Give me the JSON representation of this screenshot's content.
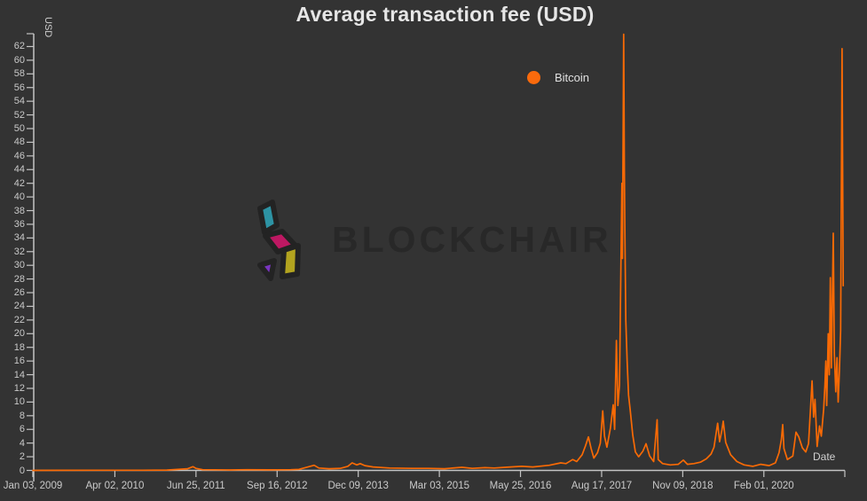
{
  "header": {
    "title": "Average transaction fee (USD)"
  },
  "legend": {
    "items": [
      {
        "label": "Bitcoin",
        "color": "#fa6a0c"
      }
    ]
  },
  "watermark": {
    "text": "BLOCKCHAIR"
  },
  "colors": {
    "background": "#333333",
    "line": "#f96a05",
    "axis": "#c4c4c4",
    "tick_text": "#c9c9c9",
    "title_text": "#e6e6e6",
    "watermark_text": "#282828",
    "logo_teal": "#2d93a4",
    "logo_magenta": "#bd1862",
    "logo_purple": "#7a35c1",
    "logo_yellow": "#b3a41f"
  },
  "axes": {
    "y": {
      "title": "USD",
      "tick_labels": [
        "0",
        "2",
        "4",
        "6",
        "8",
        "10",
        "12",
        "14",
        "16",
        "18",
        "20",
        "22",
        "24",
        "26",
        "28",
        "30",
        "32",
        "34",
        "36",
        "38",
        "40",
        "42",
        "44",
        "46",
        "48",
        "50",
        "52",
        "54",
        "56",
        "58",
        "60",
        "62"
      ]
    },
    "x": {
      "title": "Date",
      "ticks": [
        {
          "label": "Jan 03, 2009",
          "date": "2009-01-03"
        },
        {
          "label": "Apr 02, 2010",
          "date": "2010-04-02"
        },
        {
          "label": "Jun 25, 2011",
          "date": "2011-06-25"
        },
        {
          "label": "Sep 16, 2012",
          "date": "2012-09-16"
        },
        {
          "label": "Dec 09, 2013",
          "date": "2013-12-09"
        },
        {
          "label": "Mar 03, 2015",
          "date": "2015-03-03"
        },
        {
          "label": "May 25, 2016",
          "date": "2016-05-25"
        },
        {
          "label": "Aug 17, 2017",
          "date": "2017-08-17"
        },
        {
          "label": "Nov 09, 2018",
          "date": "2018-11-09"
        },
        {
          "label": "Feb 01, 2020",
          "date": "2020-02-01"
        }
      ],
      "end_date": "2021-04-24"
    }
  },
  "chart_data": {
    "type": "line",
    "title": "Average transaction fee (USD)",
    "xlabel": "Date",
    "ylabel": "USD",
    "ylim": [
      0,
      64
    ],
    "x_range": [
      "2009-01-03",
      "2021-04-24"
    ],
    "grid": false,
    "legend_position": "top-center",
    "series": [
      {
        "name": "Bitcoin",
        "color": "#f96a05",
        "points": [
          [
            "2009-01-03",
            0.0
          ],
          [
            "2009-06-01",
            0.01
          ],
          [
            "2010-01-01",
            0.02
          ],
          [
            "2010-09-01",
            0.02
          ],
          [
            "2011-01-15",
            0.05
          ],
          [
            "2011-05-10",
            0.25
          ],
          [
            "2011-06-08",
            0.55
          ],
          [
            "2011-06-25",
            0.3
          ],
          [
            "2011-08-01",
            0.1
          ],
          [
            "2012-01-01",
            0.06
          ],
          [
            "2012-04-01",
            0.1
          ],
          [
            "2012-08-01",
            0.08
          ],
          [
            "2012-12-01",
            0.1
          ],
          [
            "2013-01-15",
            0.15
          ],
          [
            "2013-04-09",
            0.75
          ],
          [
            "2013-05-05",
            0.35
          ],
          [
            "2013-07-01",
            0.25
          ],
          [
            "2013-09-01",
            0.3
          ],
          [
            "2013-10-12",
            0.6
          ],
          [
            "2013-11-05",
            1.1
          ],
          [
            "2013-12-01",
            0.8
          ],
          [
            "2013-12-20",
            1.0
          ],
          [
            "2014-01-15",
            0.7
          ],
          [
            "2014-03-01",
            0.5
          ],
          [
            "2014-06-01",
            0.35
          ],
          [
            "2014-10-01",
            0.3
          ],
          [
            "2015-01-01",
            0.3
          ],
          [
            "2015-04-01",
            0.25
          ],
          [
            "2015-07-06",
            0.45
          ],
          [
            "2015-09-01",
            0.3
          ],
          [
            "2015-11-10",
            0.4
          ],
          [
            "2016-01-01",
            0.35
          ],
          [
            "2016-03-01",
            0.45
          ],
          [
            "2016-06-01",
            0.6
          ],
          [
            "2016-08-01",
            0.5
          ],
          [
            "2016-11-01",
            0.75
          ],
          [
            "2017-01-03",
            1.1
          ],
          [
            "2017-02-01",
            1.0
          ],
          [
            "2017-03-10",
            1.6
          ],
          [
            "2017-04-01",
            1.3
          ],
          [
            "2017-05-01",
            2.3
          ],
          [
            "2017-05-20",
            3.6
          ],
          [
            "2017-06-05",
            4.9
          ],
          [
            "2017-06-20",
            3.2
          ],
          [
            "2017-07-05",
            1.8
          ],
          [
            "2017-07-25",
            2.6
          ],
          [
            "2017-08-10",
            4.0
          ],
          [
            "2017-08-23",
            8.7
          ],
          [
            "2017-09-02",
            5.0
          ],
          [
            "2017-09-15",
            3.4
          ],
          [
            "2017-10-05",
            6.2
          ],
          [
            "2017-10-20",
            9.6
          ],
          [
            "2017-10-28",
            6.0
          ],
          [
            "2017-11-07",
            19.0
          ],
          [
            "2017-11-15",
            9.5
          ],
          [
            "2017-11-24",
            12.5
          ],
          [
            "2017-12-01",
            28.0
          ],
          [
            "2017-12-07",
            42.0
          ],
          [
            "2017-12-10",
            31.0
          ],
          [
            "2017-12-17",
            63.8
          ],
          [
            "2017-12-21",
            44.0
          ],
          [
            "2017-12-24",
            34.5
          ],
          [
            "2017-12-29",
            22.0
          ],
          [
            "2018-01-05",
            16.0
          ],
          [
            "2018-01-13",
            11.0
          ],
          [
            "2018-01-22",
            8.9
          ],
          [
            "2018-02-05",
            5.2
          ],
          [
            "2018-02-20",
            2.7
          ],
          [
            "2018-03-10",
            2.0
          ],
          [
            "2018-04-02",
            2.8
          ],
          [
            "2018-04-20",
            3.9
          ],
          [
            "2018-05-10",
            2.1
          ],
          [
            "2018-06-01",
            1.3
          ],
          [
            "2018-06-20",
            7.4
          ],
          [
            "2018-06-26",
            1.6
          ],
          [
            "2018-07-20",
            1.0
          ],
          [
            "2018-09-01",
            0.8
          ],
          [
            "2018-10-15",
            0.9
          ],
          [
            "2018-11-12",
            1.5
          ],
          [
            "2018-12-05",
            0.9
          ],
          [
            "2019-01-10",
            1.0
          ],
          [
            "2019-02-15",
            1.2
          ],
          [
            "2019-03-20",
            1.7
          ],
          [
            "2019-04-15",
            2.4
          ],
          [
            "2019-05-01",
            3.4
          ],
          [
            "2019-05-21",
            6.9
          ],
          [
            "2019-06-01",
            4.2
          ],
          [
            "2019-06-14",
            5.9
          ],
          [
            "2019-06-21",
            7.2
          ],
          [
            "2019-07-05",
            4.1
          ],
          [
            "2019-08-01",
            2.3
          ],
          [
            "2019-09-05",
            1.3
          ],
          [
            "2019-10-15",
            0.8
          ],
          [
            "2019-12-01",
            0.6
          ],
          [
            "2020-01-15",
            0.9
          ],
          [
            "2020-03-01",
            0.7
          ],
          [
            "2020-04-05",
            1.1
          ],
          [
            "2020-04-25",
            2.6
          ],
          [
            "2020-05-08",
            4.5
          ],
          [
            "2020-05-15",
            6.7
          ],
          [
            "2020-05-22",
            3.2
          ],
          [
            "2020-06-10",
            1.6
          ],
          [
            "2020-07-10",
            2.1
          ],
          [
            "2020-07-28",
            5.6
          ],
          [
            "2020-08-12",
            4.9
          ],
          [
            "2020-09-01",
            3.3
          ],
          [
            "2020-09-20",
            2.7
          ],
          [
            "2020-10-05",
            3.9
          ],
          [
            "2020-10-25",
            13.1
          ],
          [
            "2020-11-02",
            7.8
          ],
          [
            "2020-11-10",
            10.4
          ],
          [
            "2020-11-22",
            3.5
          ],
          [
            "2020-12-05",
            6.5
          ],
          [
            "2020-12-15",
            5.0
          ],
          [
            "2020-12-28",
            9.0
          ],
          [
            "2021-01-04",
            12.5
          ],
          [
            "2021-01-09",
            16.0
          ],
          [
            "2021-01-14",
            9.5
          ],
          [
            "2021-01-22",
            20.0
          ],
          [
            "2021-01-28",
            14.0
          ],
          [
            "2021-02-03",
            28.2
          ],
          [
            "2021-02-09",
            15.0
          ],
          [
            "2021-02-19",
            34.7
          ],
          [
            "2021-02-25",
            17.0
          ],
          [
            "2021-03-05",
            11.5
          ],
          [
            "2021-03-12",
            16.5
          ],
          [
            "2021-03-18",
            10.0
          ],
          [
            "2021-03-25",
            14.5
          ],
          [
            "2021-04-01",
            20.5
          ],
          [
            "2021-04-09",
            61.7
          ],
          [
            "2021-04-15",
            27.0
          ]
        ]
      }
    ]
  }
}
